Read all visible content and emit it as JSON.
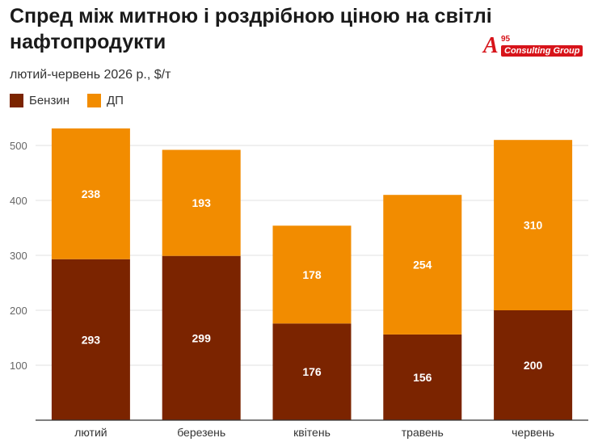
{
  "title": "Спред між митною і роздрібною ціною на світлі нафтопродукти",
  "subtitle": "лютий-червень 2026 р., $/т",
  "logo": {
    "letter": "A",
    "superscript": "95",
    "text": "Consulting Group"
  },
  "colors": {
    "benzin": "#7b2400",
    "dp": "#f28c00",
    "grid": "#e2e2e2",
    "axis": "#333333"
  },
  "chart_data": {
    "type": "bar",
    "stacked": true,
    "categories": [
      "лютий",
      "березень",
      "квітень",
      "травень",
      "червень"
    ],
    "series": [
      {
        "name": "Бензин",
        "values": [
          293,
          299,
          176,
          156,
          200
        ]
      },
      {
        "name": "ДП",
        "values": [
          238,
          193,
          178,
          254,
          310
        ]
      }
    ],
    "ylim": [
      0,
      560
    ],
    "yticks": [
      100,
      200,
      300,
      400,
      500
    ],
    "grid": true,
    "legend": "top-left",
    "data_labels": true
  }
}
